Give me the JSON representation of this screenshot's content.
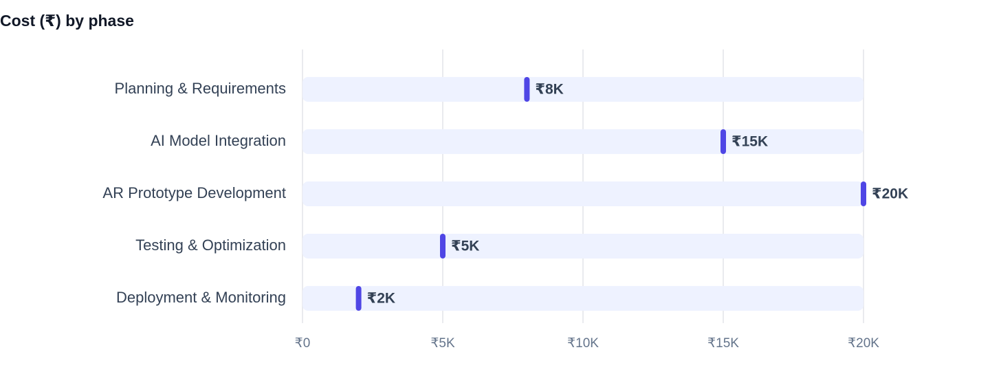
{
  "chart_data": {
    "type": "bar",
    "title": "Cost (₹) by phase",
    "categories": [
      "Planning & Requirements",
      "AI Model Integration",
      "AR Prototype Development",
      "Testing & Optimization",
      "Deployment & Monitoring"
    ],
    "values": [
      8000,
      15000,
      20000,
      5000,
      2000
    ],
    "value_labels": [
      "₹8K",
      "₹15K",
      "₹20K",
      "₹5K",
      "₹2K"
    ],
    "color": "#4f46e5",
    "track_color": "#eef2ff",
    "xlim": [
      0,
      20000
    ],
    "xticks": [
      {
        "value": 0,
        "label": "₹0"
      },
      {
        "value": 5000,
        "label": "₹5K"
      },
      {
        "value": 10000,
        "label": "₹10K"
      },
      {
        "value": 15000,
        "label": "₹15K"
      },
      {
        "value": 20000,
        "label": "₹20K"
      }
    ],
    "grid": true
  }
}
